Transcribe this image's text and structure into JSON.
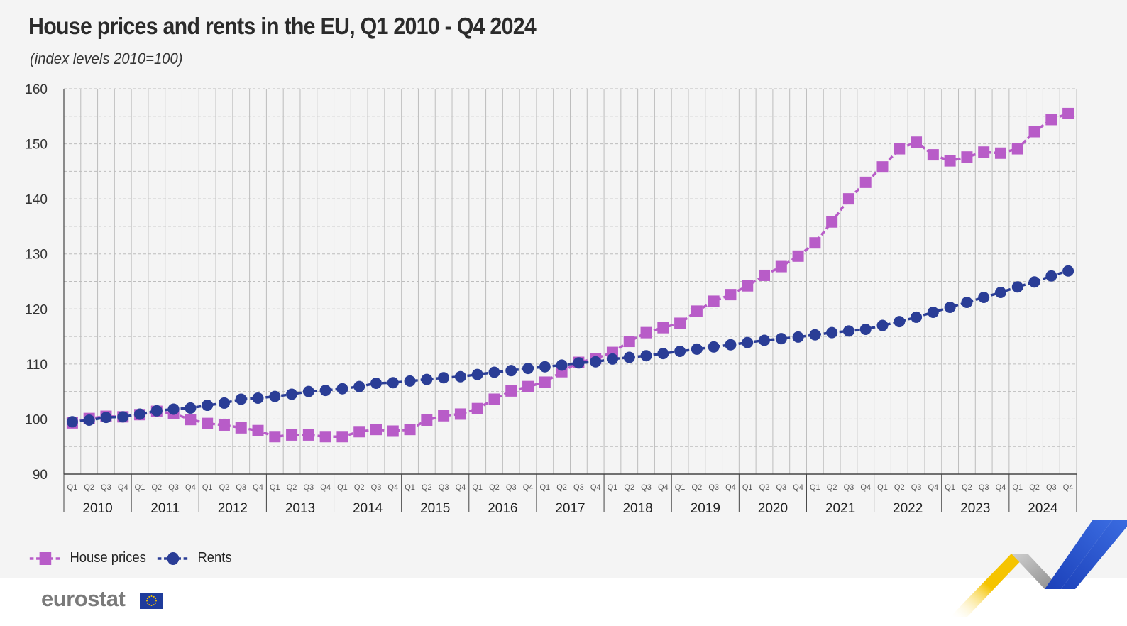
{
  "title": "House prices and rents in the EU, Q1 2010 - Q4 2024",
  "subtitle": "(index levels 2010=100)",
  "logo": "eurostat",
  "colors": {
    "house_prices": "#b85cc8",
    "rents": "#2a3d96",
    "axis": "#444444",
    "grid": "#bdbdbd",
    "brand_yellow": "#f5c400",
    "brand_blue": "#1f45c8",
    "brand_grey": "#9a9a9a"
  },
  "legend": [
    {
      "label": "House prices",
      "marker": "square"
    },
    {
      "label": "Rents",
      "marker": "circle"
    }
  ],
  "chart_data": {
    "type": "line",
    "title": "House prices and rents in the EU, Q1 2010 - Q4 2024",
    "subtitle": "(index levels 2010=100)",
    "years": [
      "2010",
      "2011",
      "2012",
      "2013",
      "2014",
      "2015",
      "2016",
      "2017",
      "2018",
      "2019",
      "2020",
      "2021",
      "2022",
      "2023",
      "2024"
    ],
    "quarters": [
      "Q1",
      "Q2",
      "Q3",
      "Q4"
    ],
    "ylim": [
      90,
      160
    ],
    "yticks": [
      90,
      100,
      110,
      120,
      130,
      140,
      150,
      160
    ],
    "grid": true,
    "legend_position": "bottom-left",
    "series": [
      {
        "name": "House prices",
        "marker": "square",
        "values": [
          99.3,
          100.1,
          100.5,
          100.4,
          100.8,
          101.4,
          101.0,
          99.9,
          99.2,
          98.9,
          98.4,
          97.9,
          96.8,
          97.1,
          97.1,
          96.8,
          96.8,
          97.7,
          98.1,
          97.8,
          98.1,
          99.8,
          100.6,
          100.9,
          101.9,
          103.6,
          105.1,
          105.9,
          106.7,
          108.6,
          110.3,
          111.0,
          112.1,
          114.1,
          115.7,
          116.6,
          117.4,
          119.6,
          121.4,
          122.6,
          124.2,
          126.1,
          127.7,
          129.6,
          132.0,
          135.8,
          140.0,
          143.0,
          145.8,
          149.1,
          150.3,
          148.0,
          146.9,
          147.6,
          148.5,
          148.3,
          149.1,
          152.2,
          154.4,
          155.5
        ]
      },
      {
        "name": "Rents",
        "marker": "circle",
        "values": [
          99.5,
          99.8,
          100.3,
          100.4,
          100.9,
          101.5,
          101.8,
          102.0,
          102.5,
          102.9,
          103.6,
          103.8,
          104.1,
          104.5,
          105.0,
          105.2,
          105.5,
          105.9,
          106.5,
          106.6,
          106.9,
          107.2,
          107.5,
          107.7,
          108.1,
          108.5,
          108.8,
          109.2,
          109.5,
          109.8,
          110.2,
          110.4,
          110.9,
          111.2,
          111.5,
          111.9,
          112.3,
          112.7,
          113.1,
          113.5,
          113.9,
          114.3,
          114.6,
          114.9,
          115.3,
          115.7,
          116.0,
          116.3,
          117.0,
          117.7,
          118.5,
          119.4,
          120.3,
          121.2,
          122.1,
          123.0,
          124.0,
          124.9,
          126.0,
          126.9
        ]
      }
    ]
  }
}
